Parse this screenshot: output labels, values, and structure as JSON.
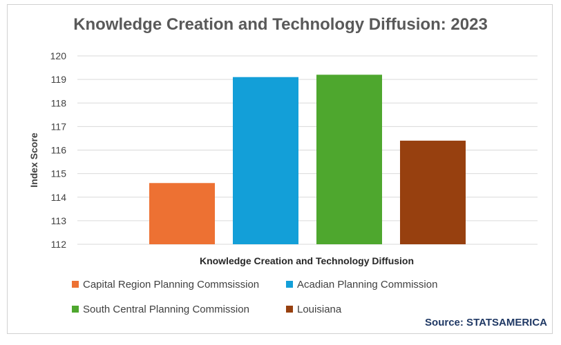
{
  "chart_data": {
    "type": "bar",
    "title": "Knowledge Creation and Technology Diffusion: 2023",
    "xlabel": "Knowledge Creation and Technology Diffusion",
    "ylabel": "Index Score",
    "ylim": [
      112,
      120
    ],
    "yticks": [
      112,
      113,
      114,
      115,
      116,
      117,
      118,
      119,
      120
    ],
    "grid": true,
    "legend_position": "bottom",
    "series": [
      {
        "name": "Capital Region Planning Commsission",
        "values": [
          114.6
        ],
        "color": "#ed7133"
      },
      {
        "name": "Acadian Planning Commission",
        "values": [
          119.1
        ],
        "color": "#139fd8"
      },
      {
        "name": "South Central Planning Commission",
        "values": [
          119.2
        ],
        "color": "#4ea72e"
      },
      {
        "name": "Louisiana",
        "values": [
          116.4
        ],
        "color": "#97400f"
      }
    ]
  },
  "source": "Source: STATSAMERICA"
}
